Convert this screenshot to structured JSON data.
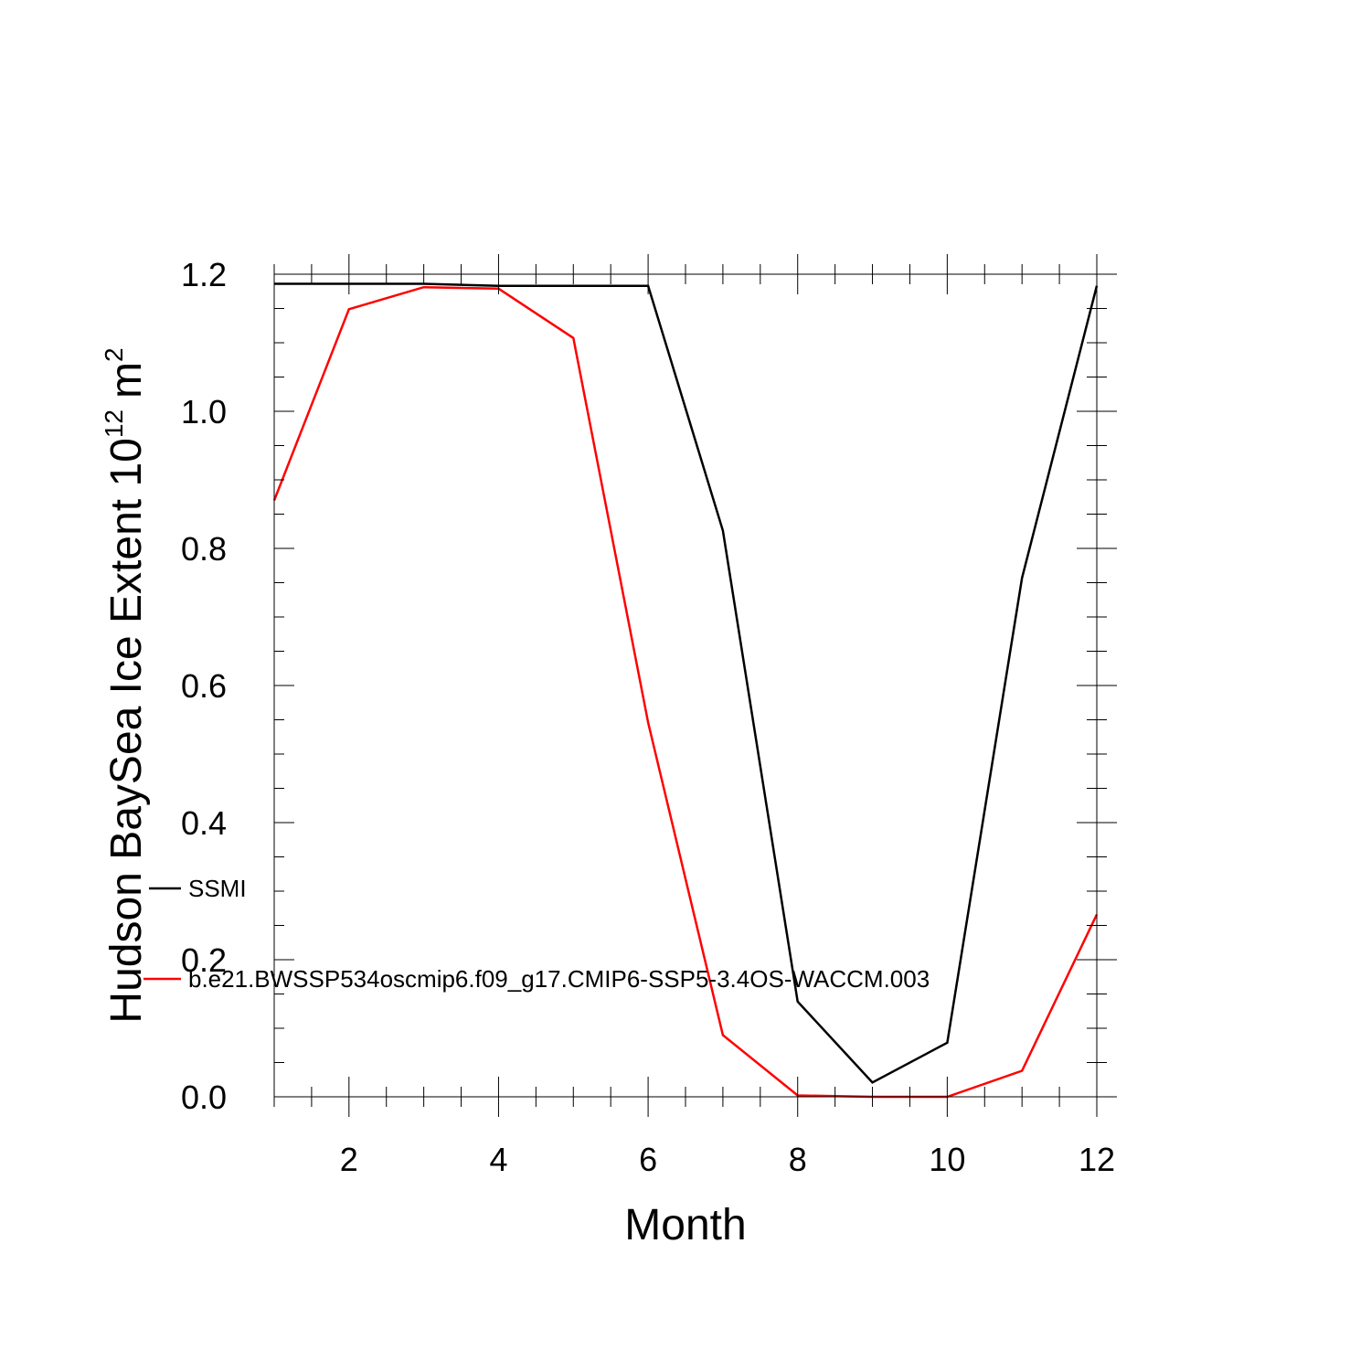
{
  "chart_data": {
    "type": "line",
    "xlabel": "Month",
    "ylabel": {
      "main": "Hudson BaySea Ice Extent 10",
      "exponent": "12",
      "unit": "m",
      "unit_exponent": "2"
    },
    "xlim": [
      1,
      12
    ],
    "ylim": [
      0,
      1.2
    ],
    "x_ticks": [
      2,
      4,
      6,
      8,
      10,
      12
    ],
    "y_ticks": [
      0.0,
      0.2,
      0.4,
      0.6,
      0.8,
      1.0,
      1.2
    ],
    "y_tick_labels": [
      "0.0",
      "0.2",
      "0.4",
      "0.6",
      "0.8",
      "1.0",
      "1.2"
    ],
    "grid": false,
    "legend_position": "inside-left",
    "x": [
      1,
      2,
      3,
      4,
      5,
      6,
      7,
      8,
      9,
      10,
      11,
      12
    ],
    "series": [
      {
        "name": "SSMI",
        "color": "#000000",
        "values": [
          1.186,
          1.186,
          1.186,
          1.183,
          1.183,
          1.183,
          0.826,
          0.139,
          0.021,
          0.079,
          0.757,
          1.183
        ]
      },
      {
        "name": "b.e21.BWSSP534oscmip6.f09_g17.CMIP6-SSP5-3.4OS-WACCM.003",
        "color": "#ff0000",
        "values": [
          0.87,
          1.149,
          1.181,
          1.179,
          1.107,
          0.546,
          0.09,
          0.002,
          0.0,
          0.0,
          0.038,
          0.266
        ]
      }
    ]
  }
}
